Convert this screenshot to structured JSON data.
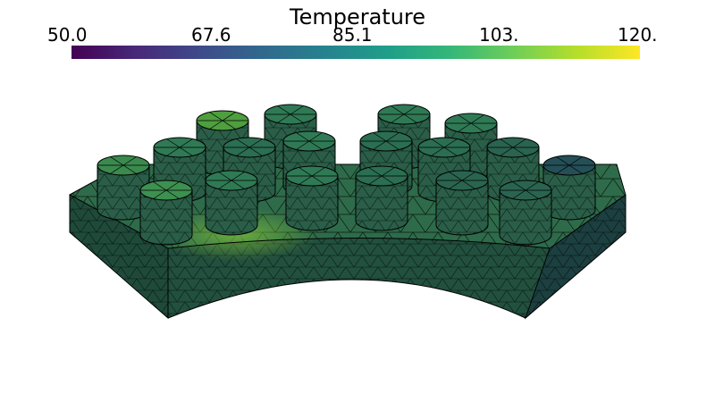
{
  "colorbar": {
    "title": "Temperature",
    "ticks": [
      "50.0",
      "67.6",
      "85.1",
      "103.",
      "120."
    ],
    "min": 50.0,
    "max": 120.0,
    "colormap": "viridis",
    "stops": [
      "#440154",
      "#482878",
      "#3e4989",
      "#31688e",
      "#26828e",
      "#1f9e89",
      "#35b779",
      "#6ece58",
      "#b5de2b",
      "#fde725"
    ]
  },
  "scene": {
    "object": "annular-sector-heat-sink-with-cylindrical-pins",
    "mesh": "triangular-surface-mesh",
    "pin_count": 19,
    "colors": {
      "base_side": "#1f4a3a",
      "base_top": "#2e6b4a",
      "pin_side": "#2a6a4c",
      "pin_top": "#3f9a4e",
      "hot_spot": "#6dbb3a",
      "edge": "#000000"
    }
  }
}
